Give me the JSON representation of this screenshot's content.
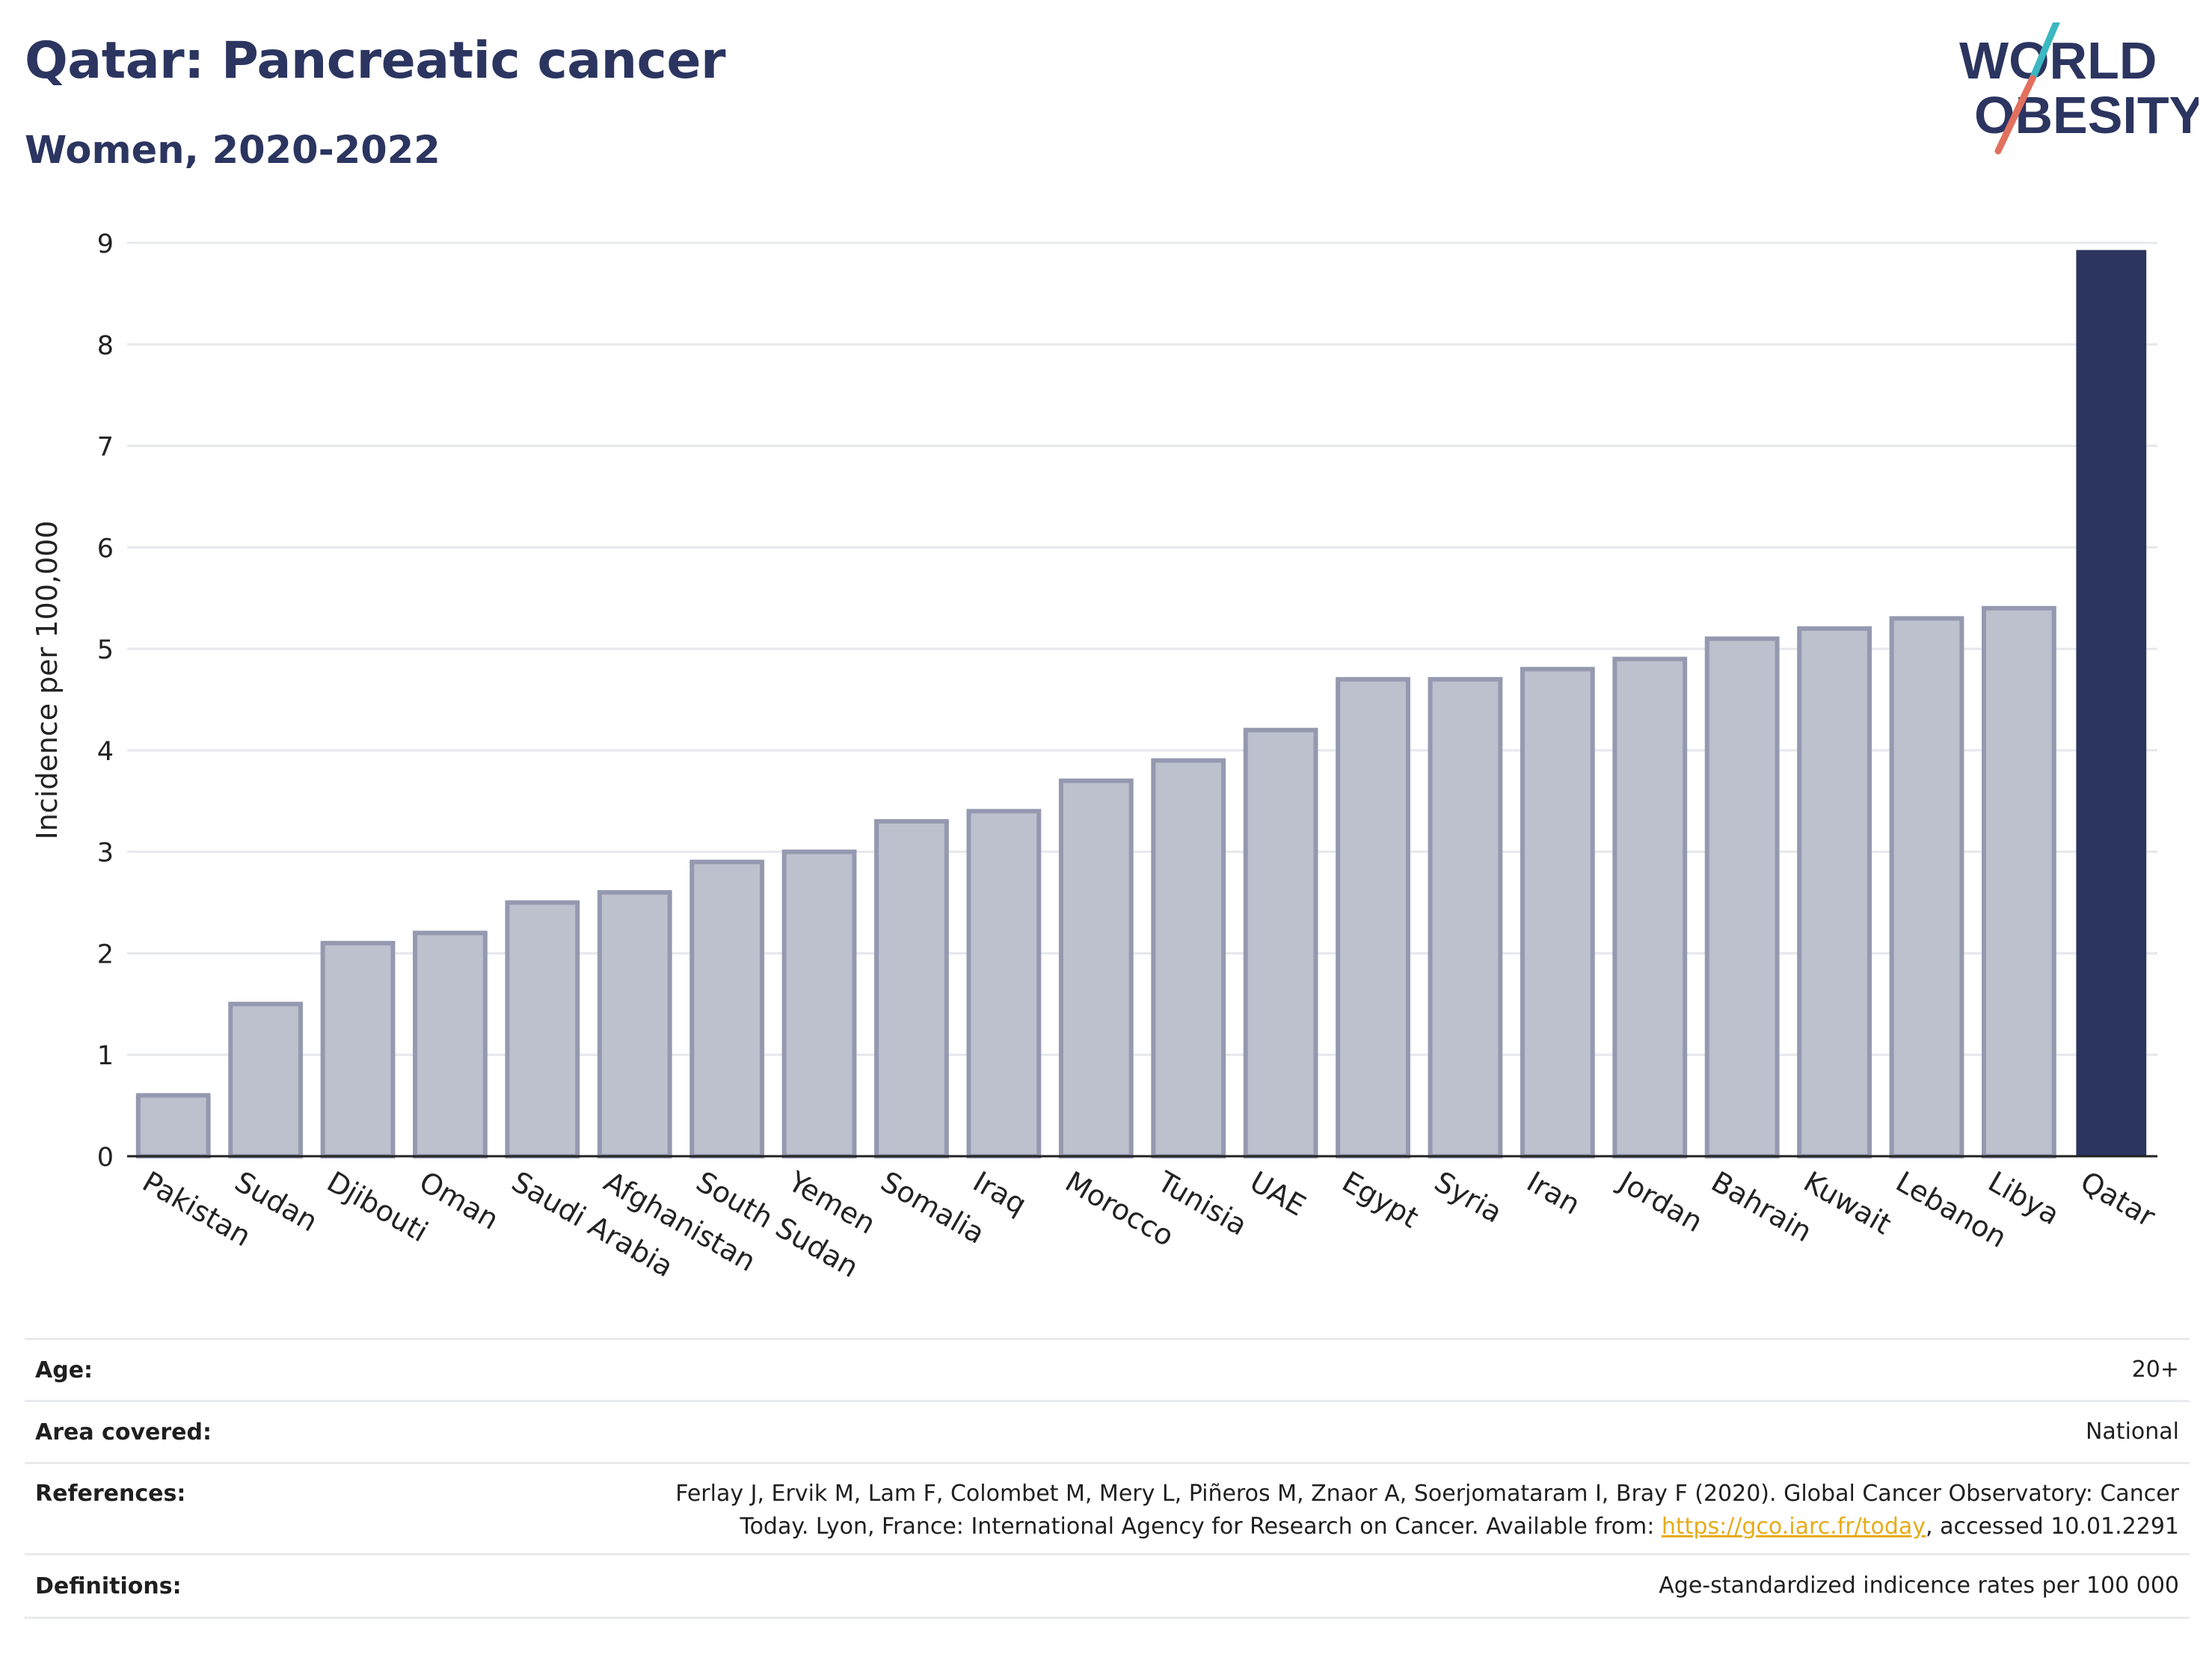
{
  "header": {
    "title": "Qatar: Pancreatic cancer",
    "subtitle": "Women, 2020-2022"
  },
  "logo": {
    "line1": "WORLD",
    "line2": "OBESITY",
    "accent_teal": "#3bb8c1",
    "accent_coral": "#e2705e",
    "text_color": "#2b3560"
  },
  "chart_data": {
    "type": "bar",
    "ylabel": "Incidence per 100,000",
    "xlabel": "",
    "ylim": [
      0,
      9
    ],
    "yticks": [
      0,
      1,
      2,
      3,
      4,
      5,
      6,
      7,
      8,
      9
    ],
    "grid": true,
    "categories": [
      "Pakistan",
      "Sudan",
      "Djibouti",
      "Oman",
      "Saudi Arabia",
      "Afghanistan",
      "South Sudan",
      "Yemen",
      "Somalia",
      "Iraq",
      "Morocco",
      "Tunisia",
      "UAE",
      "Egypt",
      "Syria",
      "Iran",
      "Jordan",
      "Bahrain",
      "Kuwait",
      "Lebanon",
      "Libya",
      "Qatar"
    ],
    "values": [
      0.6,
      1.5,
      2.1,
      2.2,
      2.5,
      2.6,
      2.9,
      3.0,
      3.3,
      3.4,
      3.7,
      3.9,
      4.2,
      4.7,
      4.7,
      4.8,
      4.9,
      5.1,
      5.2,
      5.3,
      5.4,
      8.93
    ],
    "highlight": "Qatar",
    "colors": {
      "bar_fill": "#bdc0cd",
      "bar_stroke": "#9599b0",
      "highlight_fill": "#2b3560",
      "grid": "#e6e8ec",
      "axis": "#222222"
    }
  },
  "meta": {
    "age_label": "Age:",
    "age_value": "20+",
    "area_label": "Area covered:",
    "area_value": "National",
    "references_label": "References:",
    "references_line1": "Ferlay J, Ervik M, Lam F, Colombet M, Mery L, Piñeros M, Znaor A, Soerjomataram I, Bray F (2020). Global Cancer Observatory: Cancer",
    "references_line2_pre": "Today. Lyon, France: International Agency for Research on Cancer. Available from: ",
    "references_link": "https://gco.iarc.fr/today",
    "references_line2_post": ", accessed 10.01.2291",
    "definitions_label": "Definitions:",
    "definitions_value": "Age-standardized indicence rates per 100 000"
  }
}
